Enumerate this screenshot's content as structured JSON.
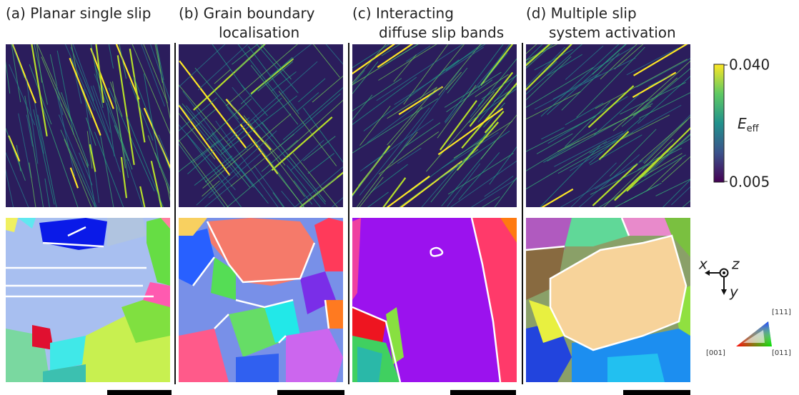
{
  "panels": [
    {
      "label": [
        "(a) Planar single slip"
      ]
    },
    {
      "label": [
        "(b)  Grain boundary",
        "localisation"
      ]
    },
    {
      "label": [
        "(c)  Interacting",
        "diffuse slip bands"
      ]
    },
    {
      "label": [
        "(d) Multiple slip",
        "system activation"
      ]
    }
  ],
  "colorbar": {
    "symbol": "E",
    "subscript": "eff",
    "max_label": "0.040",
    "min_label": "0.005"
  },
  "axes_icon": {
    "x": "x",
    "y": "y",
    "z": "z"
  },
  "ipf_key": {
    "top": "[111]",
    "left": "[001]",
    "right": "[011]"
  }
}
